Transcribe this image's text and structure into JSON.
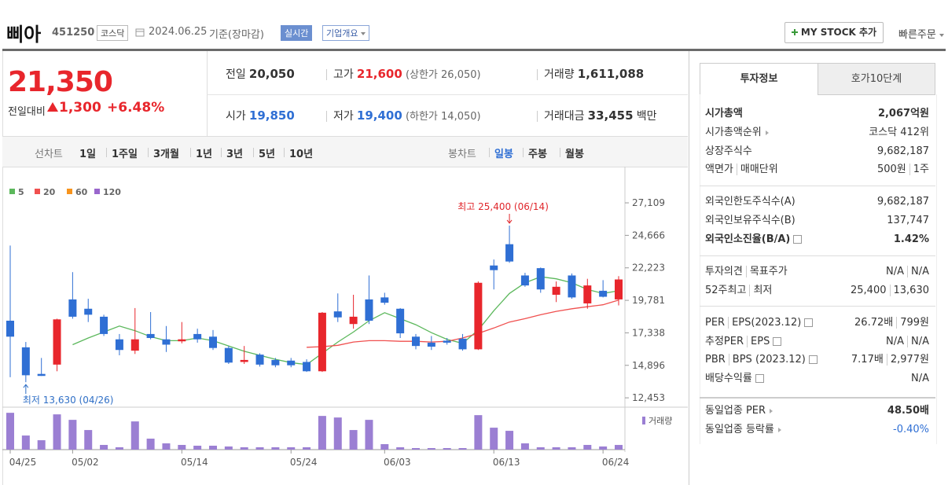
{
  "header": {
    "name": "삐아",
    "code": "451250",
    "market": "코스닥",
    "date": "2024.06.25",
    "basis": "기준(장마감)",
    "realtime": "실시간",
    "company_info": "기업개요",
    "my_stock": "MY STOCK 추가",
    "quick_order": "빠른주문"
  },
  "summary": {
    "price": "21,350",
    "change_label": "전일대비",
    "change": "1,300",
    "change_pct": "+6.48%"
  },
  "quote": {
    "prev_label": "전일",
    "prev": "20,050",
    "high_label": "고가",
    "high": "21,600",
    "upper_limit": "(상한가 26,050)",
    "volume_label": "거래량",
    "volume": "1,611,088",
    "open_label": "시가",
    "open": "19,850",
    "low_label": "저가",
    "low": "19,400",
    "lower_limit": "(하한가 14,050)",
    "amount_label": "거래대금",
    "amount": "33,455",
    "amount_unit": "백만"
  },
  "chart_tabs": {
    "line_label": "선차트",
    "line_periods": [
      "1일",
      "1주일",
      "3개월",
      "1년",
      "3년",
      "5년",
      "10년"
    ],
    "candle_label": "봉차트",
    "candle_periods": [
      "일봉",
      "주봉",
      "월봉"
    ]
  },
  "chart_data": {
    "type": "candlestick",
    "categories": [
      "04/25",
      null,
      null,
      null,
      "05/02",
      null,
      null,
      null,
      null,
      null,
      null,
      "05/14",
      null,
      null,
      null,
      null,
      null,
      null,
      "05/24",
      null,
      null,
      null,
      null,
      null,
      "06/03",
      null,
      null,
      null,
      null,
      null,
      null,
      "06/13",
      null,
      null,
      null,
      null,
      null,
      null,
      "06/24",
      null
    ],
    "open": [
      18250,
      16250,
      14250,
      14950,
      19850,
      19150,
      18550,
      16850,
      16000,
      17250,
      16850,
      16700,
      17250,
      17050,
      16200,
      15150,
      15700,
      15300,
      15250,
      15150,
      14450,
      18950,
      18000,
      19850,
      20000,
      19150,
      17050,
      16600,
      16750,
      16900,
      16100,
      22400,
      24000,
      21650,
      22200,
      20200,
      21650,
      19550,
      20500,
      19850
    ],
    "high": [
      23900,
      16650,
      15450,
      18400,
      21900,
      19900,
      18700,
      17250,
      19200,
      18900,
      17850,
      18150,
      17650,
      17550,
      16350,
      16350,
      15800,
      15450,
      15450,
      15350,
      18900,
      20300,
      20200,
      21650,
      20350,
      19200,
      17250,
      17100,
      16950,
      17250,
      21200,
      22850,
      25400,
      21850,
      22250,
      21200,
      21800,
      21400,
      21300,
      21600
    ],
    "low": [
      14000,
      13630,
      14100,
      14450,
      18400,
      18150,
      17100,
      15650,
      15750,
      16850,
      15900,
      16550,
      16600,
      16050,
      15000,
      15000,
      14800,
      14750,
      14750,
      14400,
      14400,
      18150,
      17650,
      18000,
      19450,
      16950,
      16100,
      16050,
      16450,
      16000,
      16050,
      20600,
      22600,
      20800,
      20350,
      19650,
      19900,
      19150,
      20000,
      19400
    ],
    "close": [
      17050,
      14150,
      14100,
      18350,
      18550,
      18700,
      17250,
      16050,
      16850,
      16950,
      16450,
      16850,
      16850,
      16200,
      15100,
      15300,
      14950,
      14900,
      14900,
      14450,
      18850,
      18500,
      18550,
      18250,
      19600,
      17300,
      16350,
      16300,
      16600,
      16100,
      21100,
      22050,
      22700,
      20900,
      20600,
      20800,
      20000,
      20900,
      20050,
      21350
    ],
    "up_color": "#e8262c",
    "down_color": "#2f6fd4",
    "series": [
      {
        "name": "5",
        "color": "#5cb85c",
        "values": [
          null,
          null,
          null,
          null,
          16450,
          16950,
          17400,
          17850,
          17500,
          17050,
          16750,
          16750,
          16950,
          16750,
          16350,
          15950,
          15650,
          15350,
          15100,
          14950,
          15800,
          16650,
          17400,
          18250,
          18850,
          18400,
          17950,
          17350,
          16850,
          16550,
          17550,
          19000,
          20300,
          21100,
          21550,
          21400,
          21100,
          20600,
          20300,
          20500
        ]
      },
      {
        "name": "20",
        "color": "#f0504f",
        "values": [
          null,
          null,
          null,
          null,
          null,
          null,
          null,
          null,
          null,
          null,
          null,
          null,
          null,
          null,
          null,
          null,
          null,
          null,
          null,
          16250,
          16300,
          16400,
          16650,
          16750,
          16750,
          16700,
          16700,
          16650,
          16700,
          16950,
          17300,
          17700,
          18150,
          18400,
          18700,
          18950,
          19150,
          19300,
          19450,
          19800
        ]
      },
      {
        "name": "60",
        "color": "#f7941d",
        "values": [
          null,
          null,
          null,
          null,
          null,
          null,
          null,
          null,
          null,
          null,
          null,
          null,
          null,
          null,
          null,
          null,
          null,
          null,
          null,
          null,
          null,
          null,
          null,
          null,
          null,
          null,
          null,
          null,
          null,
          null,
          null,
          null,
          null,
          null,
          null,
          null,
          null,
          null,
          null,
          null
        ]
      },
      {
        "name": "120",
        "color": "#9966cc",
        "values": [
          null,
          null,
          null,
          null,
          null,
          null,
          null,
          null,
          null,
          null,
          null,
          null,
          null,
          null,
          null,
          null,
          null,
          null,
          null,
          null,
          null,
          null,
          null,
          null,
          null,
          null,
          null,
          null,
          null,
          null,
          null,
          null,
          null,
          null,
          null,
          null,
          null,
          null,
          null,
          null
        ]
      }
    ],
    "volume": {
      "name": "거래량",
      "color": "#9b7fd3",
      "ylim": [
        0,
        13000000
      ],
      "values": [
        12690000,
        4860000,
        3240000,
        12150000,
        10260000,
        6750000,
        1620000,
        810000,
        9720000,
        3780000,
        2160000,
        1620000,
        1350000,
        1350000,
        1080000,
        810000,
        810000,
        810000,
        810000,
        810000,
        11610000,
        11070000,
        6750000,
        10260000,
        1890000,
        810000,
        540000,
        540000,
        540000,
        540000,
        11880000,
        7560000,
        6480000,
        2160000,
        810000,
        810000,
        810000,
        1620000,
        1080000,
        1611088
      ]
    },
    "ylim": [
      11750,
      27880
    ],
    "yticks": [
      {
        "value": 27109,
        "label": "27,109"
      },
      {
        "value": 24666,
        "label": "24,666"
      },
      {
        "value": 22223,
        "label": "22,223"
      },
      {
        "value": 19781,
        "label": "19,781"
      },
      {
        "value": 17338,
        "label": "17,338"
      },
      {
        "value": 14896,
        "label": "14,896"
      },
      {
        "value": 12453,
        "label": "12,453"
      }
    ],
    "annotations": [
      {
        "text": "최고 25,400 (06/14)",
        "color": "#e0262b"
      },
      {
        "text": "최저 13,630 (04/26)",
        "color": "#2f6fc6"
      }
    ]
  },
  "invest": {
    "tabs": [
      "투자정보",
      "호가10단계"
    ],
    "rows": [
      {
        "label": [
          "시가총액"
        ],
        "value": [
          "2,067억원"
        ]
      },
      {
        "label": [
          "시가총액순위"
        ],
        "value": [
          "코스닥 412위"
        ]
      },
      {
        "label": [
          "상장주식수"
        ],
        "value": [
          "9,682,187"
        ]
      },
      {
        "label": [
          "액면가",
          "매매단위"
        ],
        "value": [
          "500원",
          "1주"
        ]
      },
      {
        "label": [
          "외국인한도주식수(A)"
        ],
        "value": [
          "9,682,187"
        ]
      },
      {
        "label": [
          "외국인보유주식수(B)"
        ],
        "value": [
          "137,747"
        ]
      },
      {
        "label": [
          "외국인소진율(B/A)"
        ],
        "value": [
          "1.42%"
        ]
      },
      {
        "label": [
          "투자의견",
          "목표주가"
        ],
        "value": [
          "N/A",
          "N/A"
        ]
      },
      {
        "label": [
          "52주최고",
          "최저"
        ],
        "value": [
          "25,400",
          "13,630"
        ]
      },
      {
        "label": [
          "PER",
          "EPS(2023.12)"
        ],
        "value": [
          "26.72배",
          "799원"
        ]
      },
      {
        "label": [
          "추정PER",
          "EPS"
        ],
        "value": [
          "N/A",
          "N/A"
        ]
      },
      {
        "label": [
          "PBR",
          "BPS (2023.12)"
        ],
        "value": [
          "7.17배",
          "2,977원"
        ]
      },
      {
        "label": [
          "배당수익률"
        ],
        "value": [
          "N/A"
        ]
      },
      {
        "label": [
          "동일업종 PER"
        ],
        "value": [
          "48.50배"
        ]
      },
      {
        "label": [
          "동일업종 등락률"
        ],
        "value": [
          "-0.40%"
        ]
      }
    ]
  }
}
